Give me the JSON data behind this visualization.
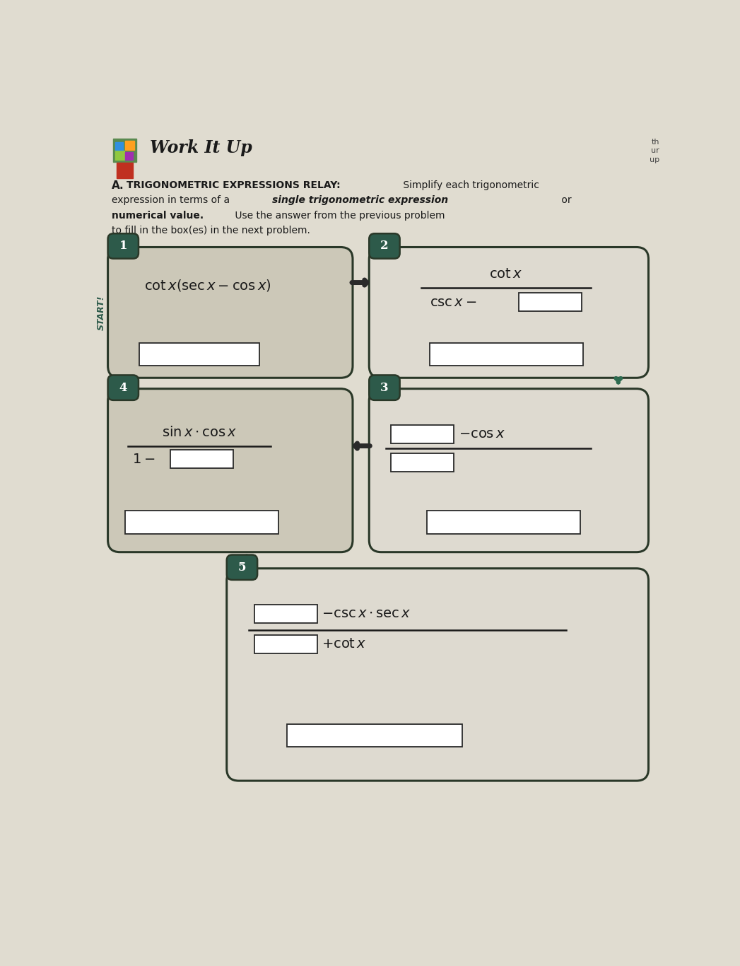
{
  "title": "Work It Up",
  "section_label": "A.",
  "section_title": "TRIGONOMETRIC EXPRESSIONS RELAY:",
  "bg_color": "#d8d0c0",
  "paper_color": "#e0dcd0",
  "inner_color1": "#ccc8b8",
  "inner_color2": "#dedad0",
  "white_color": "#ffffff",
  "border_color": "#2a3828",
  "arrow_color": "#2d6b50",
  "dark_arrow_color": "#2a2a2a",
  "start_label": "START!",
  "label1": "1",
  "label2": "2",
  "label3": "3",
  "label4": "4",
  "label5": "5",
  "bx1": [
    0.28,
    4.75,
    8.85,
    11.25
  ],
  "bx2": [
    5.05,
    10.15,
    8.85,
    11.25
  ],
  "bx4": [
    0.28,
    4.75,
    5.65,
    8.65
  ],
  "bx3": [
    5.05,
    10.15,
    5.65,
    8.65
  ],
  "bx5": [
    2.45,
    10.15,
    1.45,
    5.35
  ]
}
